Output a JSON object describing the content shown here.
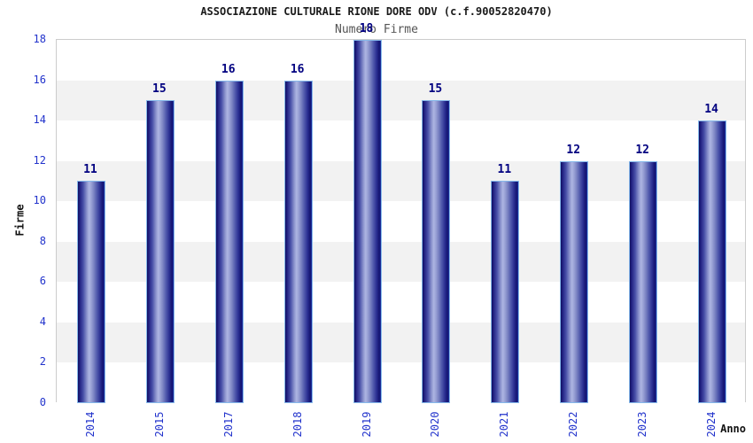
{
  "header": {
    "title": "ASSOCIAZIONE CULTURALE RIONE DORE ODV (c.f.90052820470)",
    "subtitle": "Numero Firme"
  },
  "axes": {
    "y_title": "Firme",
    "x_title": "Anno"
  },
  "chart_data": {
    "type": "bar",
    "title": "ASSOCIAZIONE CULTURALE RIONE DORE ODV (c.f.90052820470)",
    "subtitle": "Numero Firme",
    "categories": [
      "2014",
      "2015",
      "2017",
      "2018",
      "2019",
      "2020",
      "2021",
      "2022",
      "2023",
      "2024"
    ],
    "values": [
      11,
      15,
      16,
      16,
      18,
      15,
      11,
      12,
      12,
      14
    ],
    "xlabel": "Anno",
    "ylabel": "Firme",
    "ylim": [
      0,
      18
    ],
    "ytick_step": 2,
    "grid": "alternating horizontal bands, white and light gray, 2 units each",
    "legend_position": "none",
    "bar_value_labels_shown": true
  },
  "colors": {
    "tick_label": "#2233cc",
    "bar_value_label": "#000080",
    "band_gray": "#f2f2f2",
    "band_white": "#ffffff",
    "plot_border": "#cccccc",
    "title": "#1a1a1a",
    "subtitle": "#555555",
    "axis_title": "#111111",
    "bar_border_highlight": "#85b8ea",
    "bar_gradient_dark": "#10105f",
    "bar_gradient_light": "#adb5e2"
  }
}
